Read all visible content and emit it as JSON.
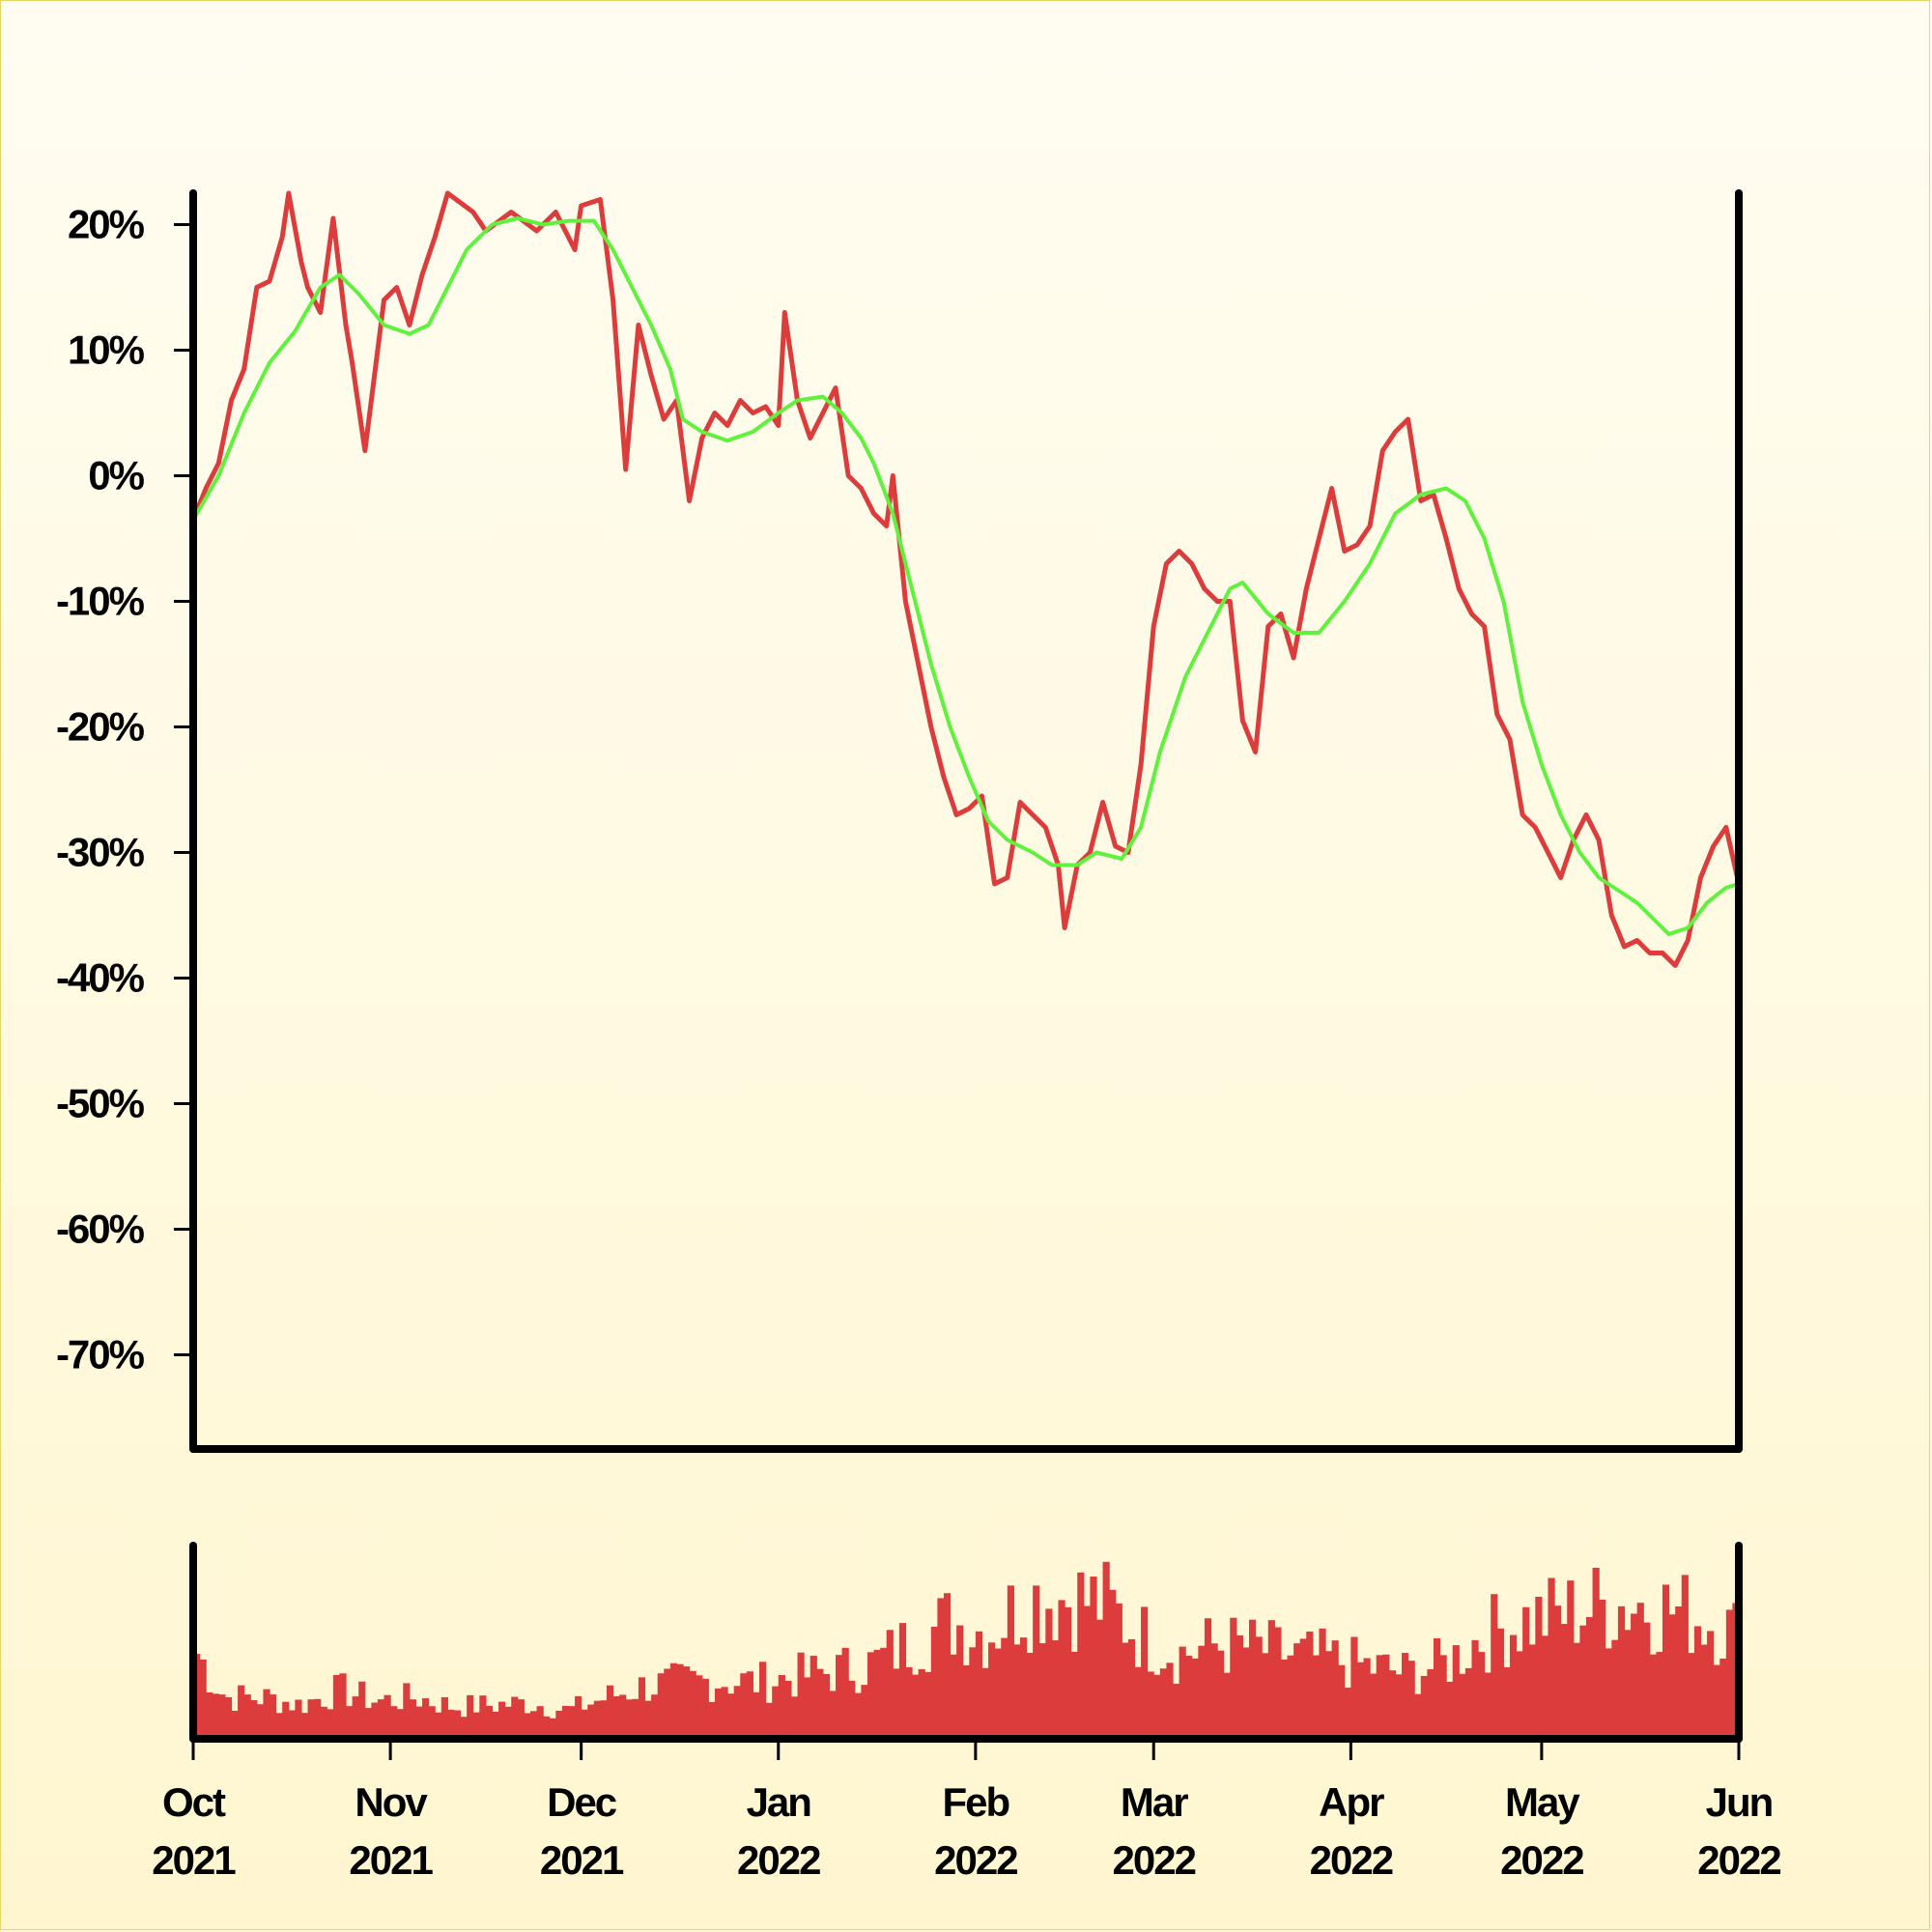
{
  "chart_data": {
    "type": "line",
    "price_panel": {
      "y_ticks": [
        {
          "value": 20,
          "label": "20%"
        },
        {
          "value": 10,
          "label": "10%"
        },
        {
          "value": 0,
          "label": "0%"
        },
        {
          "value": -10,
          "label": "-10%"
        },
        {
          "value": -20,
          "label": "-20%"
        },
        {
          "value": -30,
          "label": "-30%"
        },
        {
          "value": -40,
          "label": "-40%"
        },
        {
          "value": -50,
          "label": "-50%"
        },
        {
          "value": -60,
          "label": "-60%"
        },
        {
          "value": -70,
          "label": "-70%"
        }
      ],
      "ylim": [
        -77.5,
        22.5
      ],
      "grid": false,
      "series": [
        {
          "color": "#dc3c3c",
          "points": [
            [
              "2021-10-01",
              -3.5
            ],
            [
              "2021-10-03",
              -1
            ],
            [
              "2021-10-05",
              1
            ],
            [
              "2021-10-07",
              6
            ],
            [
              "2021-10-09",
              8.5
            ],
            [
              "2021-10-11",
              15
            ],
            [
              "2021-10-13",
              15.5
            ],
            [
              "2021-10-15",
              19
            ],
            [
              "2021-10-16",
              22.5
            ],
            [
              "2021-10-18",
              17
            ],
            [
              "2021-10-19",
              15
            ],
            [
              "2021-10-21",
              13
            ],
            [
              "2021-10-23",
              20.5
            ],
            [
              "2021-10-25",
              12
            ],
            [
              "2021-10-26",
              9
            ],
            [
              "2021-10-28",
              2
            ],
            [
              "2021-10-29",
              6
            ],
            [
              "2021-10-31",
              14
            ],
            [
              "2021-11-02",
              15
            ],
            [
              "2021-11-04",
              12
            ],
            [
              "2021-11-06",
              16
            ],
            [
              "2021-11-08",
              19
            ],
            [
              "2021-11-10",
              22.5
            ],
            [
              "2021-11-14",
              21
            ],
            [
              "2021-11-16",
              19.5
            ],
            [
              "2021-11-20",
              21
            ],
            [
              "2021-11-24",
              19.5
            ],
            [
              "2021-11-27",
              21
            ],
            [
              "2021-11-30",
              18
            ],
            [
              "2021-12-01",
              21.5
            ],
            [
              "2021-12-04",
              22
            ],
            [
              "2021-12-06",
              14
            ],
            [
              "2021-12-08",
              0.5
            ],
            [
              "2021-12-10",
              12
            ],
            [
              "2021-12-12",
              8
            ],
            [
              "2021-12-14",
              4.5
            ],
            [
              "2021-12-16",
              6
            ],
            [
              "2021-12-18",
              -2
            ],
            [
              "2021-12-20",
              3
            ],
            [
              "2021-12-22",
              5
            ],
            [
              "2021-12-24",
              4
            ],
            [
              "2021-12-26",
              6
            ],
            [
              "2021-12-28",
              5
            ],
            [
              "2021-12-30",
              5.5
            ],
            [
              "2022-01-01",
              4
            ],
            [
              "2022-01-02",
              13
            ],
            [
              "2022-01-04",
              6
            ],
            [
              "2022-01-06",
              3
            ],
            [
              "2022-01-08",
              5
            ],
            [
              "2022-01-10",
              7
            ],
            [
              "2022-01-12",
              0
            ],
            [
              "2022-01-14",
              -1
            ],
            [
              "2022-01-16",
              -3
            ],
            [
              "2022-01-18",
              -4
            ],
            [
              "2022-01-19",
              0
            ],
            [
              "2022-01-21",
              -10
            ],
            [
              "2022-01-23",
              -15
            ],
            [
              "2022-01-25",
              -20
            ],
            [
              "2022-01-27",
              -24
            ],
            [
              "2022-01-29",
              -27
            ],
            [
              "2022-01-31",
              -26.5
            ],
            [
              "2022-02-02",
              -25.5
            ],
            [
              "2022-02-04",
              -32.5
            ],
            [
              "2022-02-06",
              -32
            ],
            [
              "2022-02-08",
              -26
            ],
            [
              "2022-02-10",
              -27
            ],
            [
              "2022-02-12",
              -28
            ],
            [
              "2022-02-14",
              -31
            ],
            [
              "2022-02-15",
              -36
            ],
            [
              "2022-02-17",
              -31
            ],
            [
              "2022-02-19",
              -30
            ],
            [
              "2022-02-21",
              -26
            ],
            [
              "2022-02-23",
              -29.5
            ],
            [
              "2022-02-25",
              -30
            ],
            [
              "2022-02-27",
              -23
            ],
            [
              "2022-03-01",
              -12
            ],
            [
              "2022-03-03",
              -7
            ],
            [
              "2022-03-05",
              -6
            ],
            [
              "2022-03-07",
              -7
            ],
            [
              "2022-03-09",
              -9
            ],
            [
              "2022-03-11",
              -10
            ],
            [
              "2022-03-13",
              -10
            ],
            [
              "2022-03-15",
              -19.5
            ],
            [
              "2022-03-17",
              -22
            ],
            [
              "2022-03-19",
              -12
            ],
            [
              "2022-03-21",
              -11
            ],
            [
              "2022-03-23",
              -14.5
            ],
            [
              "2022-03-25",
              -9
            ],
            [
              "2022-03-27",
              -5
            ],
            [
              "2022-03-29",
              -1
            ],
            [
              "2022-03-31",
              -6
            ],
            [
              "2022-04-02",
              -5.5
            ],
            [
              "2022-04-04",
              -4
            ],
            [
              "2022-04-06",
              2
            ],
            [
              "2022-04-08",
              3.5
            ],
            [
              "2022-04-10",
              4.5
            ],
            [
              "2022-04-12",
              -2
            ],
            [
              "2022-04-14",
              -1.5
            ],
            [
              "2022-04-16",
              -5
            ],
            [
              "2022-04-18",
              -9
            ],
            [
              "2022-04-20",
              -11
            ],
            [
              "2022-04-22",
              -12
            ],
            [
              "2022-04-24",
              -19
            ],
            [
              "2022-04-26",
              -21
            ],
            [
              "2022-04-28",
              -27
            ],
            [
              "2022-04-30",
              -28
            ],
            [
              "2022-05-02",
              -30
            ],
            [
              "2022-05-04",
              -32
            ],
            [
              "2022-05-06",
              -29
            ],
            [
              "2022-05-08",
              -27
            ],
            [
              "2022-05-10",
              -29
            ],
            [
              "2022-05-12",
              -35
            ],
            [
              "2022-05-14",
              -37.5
            ],
            [
              "2022-05-16",
              -37
            ],
            [
              "2022-05-18",
              -38
            ],
            [
              "2022-05-20",
              -38
            ],
            [
              "2022-05-22",
              -39
            ],
            [
              "2022-05-24",
              -37
            ],
            [
              "2022-05-26",
              -32
            ],
            [
              "2022-05-28",
              -29.5
            ],
            [
              "2022-05-30",
              -28
            ],
            [
              "2022-06-01",
              -32.5
            ]
          ]
        },
        {
          "color": "#5ef23c",
          "points": [
            [
              "2021-10-01",
              -3.5
            ],
            [
              "2021-10-05",
              0
            ],
            [
              "2021-10-09",
              5
            ],
            [
              "2021-10-13",
              9
            ],
            [
              "2021-10-17",
              11.5
            ],
            [
              "2021-10-21",
              15
            ],
            [
              "2021-10-24",
              16
            ],
            [
              "2021-10-27",
              14.5
            ],
            [
              "2021-10-31",
              12
            ],
            [
              "2021-11-04",
              11.3
            ],
            [
              "2021-11-07",
              12
            ],
            [
              "2021-11-10",
              15
            ],
            [
              "2021-11-13",
              18
            ],
            [
              "2021-11-17",
              20
            ],
            [
              "2021-11-21",
              20.5
            ],
            [
              "2021-11-25",
              20
            ],
            [
              "2021-11-29",
              20.3
            ],
            [
              "2021-12-03",
              20.3
            ],
            [
              "2021-12-06",
              18
            ],
            [
              "2021-12-09",
              15
            ],
            [
              "2021-12-12",
              12
            ],
            [
              "2021-12-15",
              8.5
            ],
            [
              "2021-12-17",
              4.5
            ],
            [
              "2021-12-20",
              3.5
            ],
            [
              "2021-12-24",
              2.8
            ],
            [
              "2021-12-28",
              3.5
            ],
            [
              "2022-01-01",
              5
            ],
            [
              "2022-01-04",
              6
            ],
            [
              "2022-01-08",
              6.3
            ],
            [
              "2022-01-11",
              5
            ],
            [
              "2022-01-14",
              3
            ],
            [
              "2022-01-16",
              1
            ],
            [
              "2022-01-19",
              -3
            ],
            [
              "2022-01-22",
              -9
            ],
            [
              "2022-01-25",
              -15
            ],
            [
              "2022-01-28",
              -20
            ],
            [
              "2022-01-31",
              -24
            ],
            [
              "2022-02-03",
              -27.5
            ],
            [
              "2022-02-06",
              -29
            ],
            [
              "2022-02-10",
              -30
            ],
            [
              "2022-02-13",
              -31
            ],
            [
              "2022-02-17",
              -31
            ],
            [
              "2022-02-20",
              -30
            ],
            [
              "2022-02-24",
              -30.5
            ],
            [
              "2022-02-27",
              -28
            ],
            [
              "2022-03-02",
              -22
            ],
            [
              "2022-03-06",
              -16
            ],
            [
              "2022-03-10",
              -12
            ],
            [
              "2022-03-13",
              -9
            ],
            [
              "2022-03-15",
              -8.5
            ],
            [
              "2022-03-19",
              -11
            ],
            [
              "2022-03-23",
              -12.5
            ],
            [
              "2022-03-27",
              -12.5
            ],
            [
              "2022-03-31",
              -10
            ],
            [
              "2022-04-04",
              -7
            ],
            [
              "2022-04-08",
              -3
            ],
            [
              "2022-04-12",
              -1.5
            ],
            [
              "2022-04-16",
              -1
            ],
            [
              "2022-04-19",
              -2
            ],
            [
              "2022-04-22",
              -5
            ],
            [
              "2022-04-25",
              -10
            ],
            [
              "2022-04-28",
              -18
            ],
            [
              "2022-05-01",
              -23
            ],
            [
              "2022-05-04",
              -27
            ],
            [
              "2022-05-07",
              -30
            ],
            [
              "2022-05-10",
              -32
            ],
            [
              "2022-05-13",
              -33
            ],
            [
              "2022-05-16",
              -34
            ],
            [
              "2022-05-19",
              -35.5
            ],
            [
              "2022-05-21",
              -36.5
            ],
            [
              "2022-05-24",
              -36
            ],
            [
              "2022-05-27",
              -34
            ],
            [
              "2022-05-30",
              -32.8
            ],
            [
              "2022-06-01",
              -32.5
            ]
          ]
        }
      ]
    },
    "volume_panel": {
      "type": "bar",
      "color": "#dc3c3c",
      "ylim": [
        0,
        1
      ],
      "levels": [
        [
          "2021-10-01",
          0.48
        ],
        [
          "2021-10-06",
          0.22
        ],
        [
          "2021-10-12",
          0.22
        ],
        [
          "2021-10-18",
          0.18
        ],
        [
          "2021-10-24",
          0.26
        ],
        [
          "2021-10-30",
          0.2
        ],
        [
          "2021-11-05",
          0.22
        ],
        [
          "2021-11-11",
          0.17
        ],
        [
          "2021-11-17",
          0.18
        ],
        [
          "2021-11-23",
          0.19
        ],
        [
          "2021-11-29",
          0.15
        ],
        [
          "2021-12-05",
          0.22
        ],
        [
          "2021-12-11",
          0.28
        ],
        [
          "2021-12-17",
          0.3
        ],
        [
          "2021-12-23",
          0.31
        ],
        [
          "2021-12-29",
          0.3
        ],
        [
          "2022-01-04",
          0.33
        ],
        [
          "2022-01-10",
          0.36
        ],
        [
          "2022-01-16",
          0.4
        ],
        [
          "2022-01-22",
          0.52
        ],
        [
          "2022-01-28",
          0.62
        ],
        [
          "2022-02-03",
          0.56
        ],
        [
          "2022-02-09",
          0.74
        ],
        [
          "2022-02-15",
          0.75
        ],
        [
          "2022-02-21",
          0.72
        ],
        [
          "2022-02-27",
          0.55
        ],
        [
          "2022-03-05",
          0.45
        ],
        [
          "2022-03-11",
          0.5
        ],
        [
          "2022-03-17",
          0.48
        ],
        [
          "2022-03-23",
          0.44
        ],
        [
          "2022-03-29",
          0.42
        ],
        [
          "2022-04-04",
          0.38
        ],
        [
          "2022-04-10",
          0.35
        ],
        [
          "2022-04-16",
          0.4
        ],
        [
          "2022-04-22",
          0.55
        ],
        [
          "2022-04-28",
          0.62
        ],
        [
          "2022-05-04",
          0.66
        ],
        [
          "2022-05-10",
          0.7
        ],
        [
          "2022-05-16",
          0.72
        ],
        [
          "2022-05-22",
          0.68
        ],
        [
          "2022-05-28",
          0.62
        ],
        [
          "2022-06-01",
          0.56
        ]
      ]
    },
    "x_ticks": [
      {
        "date": "2021-10-01",
        "month": "Oct",
        "year": "2021"
      },
      {
        "date": "2021-11-01",
        "month": "Nov",
        "year": "2021"
      },
      {
        "date": "2021-12-01",
        "month": "Dec",
        "year": "2021"
      },
      {
        "date": "2022-01-01",
        "month": "Jan",
        "year": "2022"
      },
      {
        "date": "2022-02-01",
        "month": "Feb",
        "year": "2022"
      },
      {
        "date": "2022-03-01",
        "month": "Mar",
        "year": "2022"
      },
      {
        "date": "2022-04-01",
        "month": "Apr",
        "year": "2022"
      },
      {
        "date": "2022-05-01",
        "month": "May",
        "year": "2022"
      },
      {
        "date": "2022-06-01",
        "month": "Jun",
        "year": "2022"
      }
    ],
    "xlim": [
      "2021-10-01",
      "2022-06-01"
    ]
  }
}
